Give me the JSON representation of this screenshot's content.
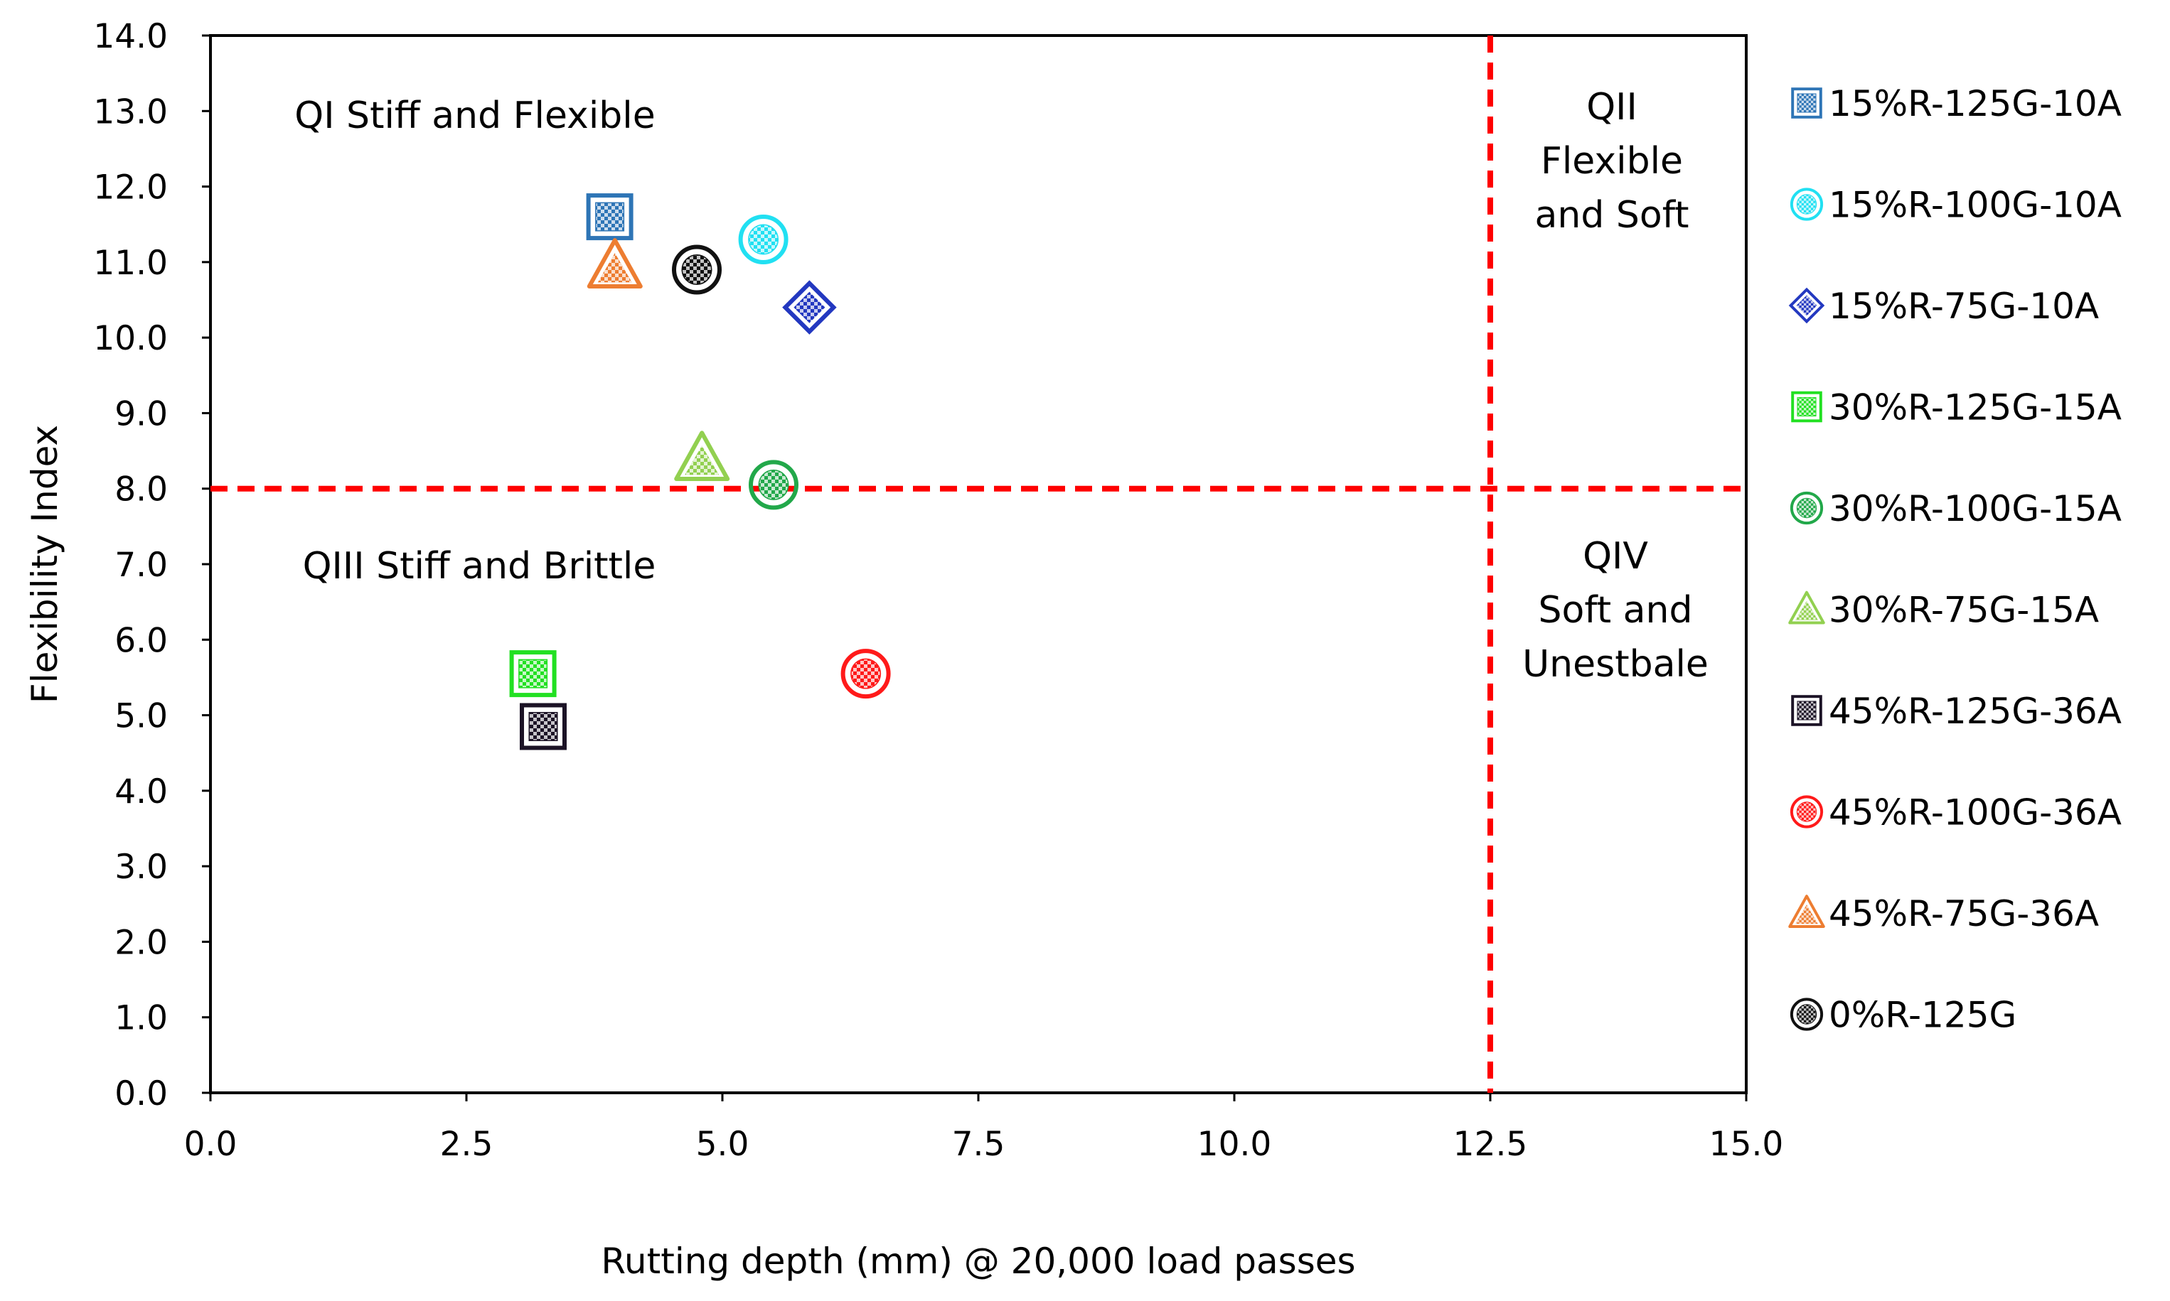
{
  "chart_data": {
    "type": "scatter",
    "title": "",
    "xlabel": "Rutting depth (mm) @ 20,000 load passes",
    "ylabel": "Flexibility Index",
    "xlim": [
      0,
      15
    ],
    "ylim": [
      0,
      14
    ],
    "x_ticks": [
      "0.0",
      "2.5",
      "5.0",
      "7.5",
      "10.0",
      "12.5",
      "15.0"
    ],
    "y_ticks": [
      "0.0",
      "1.0",
      "2.0",
      "3.0",
      "4.0",
      "5.0",
      "6.0",
      "7.0",
      "8.0",
      "9.0",
      "10.0",
      "11.0",
      "12.0",
      "13.0",
      "14.0"
    ],
    "grid": false,
    "legend_position": "right",
    "thresholds": {
      "x": 12.5,
      "y": 8.0,
      "color": "#ff0000",
      "style": "dashed"
    },
    "quadrant_labels": [
      {
        "lines": [
          "QI Stiff and Flexible"
        ],
        "quadrant": "top-left"
      },
      {
        "lines": [
          "QII",
          "Flexible",
          "and Soft"
        ],
        "quadrant": "top-right"
      },
      {
        "lines": [
          "QIII Stiff and Brittle"
        ],
        "quadrant": "bottom-left"
      },
      {
        "lines": [
          "QIV",
          "Soft and",
          "Unestbale"
        ],
        "quadrant": "bottom-right"
      }
    ],
    "series": [
      {
        "name": "15%R-125G-10A",
        "marker": "square",
        "color": "#2e75b6",
        "x": 3.9,
        "y": 11.6
      },
      {
        "name": "15%R-100G-10A",
        "marker": "circle",
        "color": "#21e0f2",
        "x": 5.4,
        "y": 11.3
      },
      {
        "name": "15%R-75G-10A",
        "marker": "diamond",
        "color": "#2338c0",
        "x": 5.85,
        "y": 10.4
      },
      {
        "name": "30%R-125G-15A",
        "marker": "square",
        "color": "#22e022",
        "x": 3.15,
        "y": 5.55
      },
      {
        "name": "30%R-100G-15A",
        "marker": "circle",
        "color": "#22a84a",
        "x": 5.5,
        "y": 8.05
      },
      {
        "name": "30%R-75G-15A",
        "marker": "triangle",
        "color": "#92d050",
        "x": 4.8,
        "y": 8.4
      },
      {
        "name": "45%R-125G-36A",
        "marker": "square",
        "color": "#1c1326",
        "x": 3.25,
        "y": 4.85
      },
      {
        "name": "45%R-100G-36A",
        "marker": "circle",
        "color": "#ff1a1a",
        "x": 6.4,
        "y": 5.55
      },
      {
        "name": "45%R-75G-36A",
        "marker": "triangle",
        "color": "#ed7d31",
        "x": 3.95,
        "y": 10.95
      },
      {
        "name": "0%R-125G",
        "marker": "circle",
        "color": "#111111",
        "x": 4.75,
        "y": 10.9
      }
    ]
  }
}
